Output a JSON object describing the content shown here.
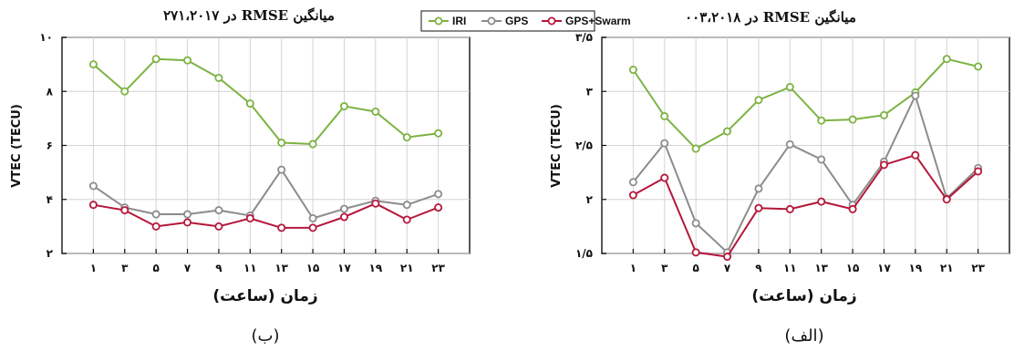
{
  "colors": {
    "IRI": "#7cb342",
    "GPS": "#8c8c8c",
    "GPS+Swarm": "#b5173a",
    "grid": "#d4d4d4"
  },
  "legend": {
    "placement": "top-center",
    "items": [
      "IRI",
      "GPS",
      "GPS+Swarm"
    ]
  },
  "chart_data": [
    {
      "panel": "(ب)",
      "type": "line",
      "title": "میانگین RMSE در ۲۷۱،۲۰۱۷",
      "xlabel": "زمان (ساعت)",
      "ylabel": "VTEC (TECU)",
      "x": [
        1,
        3,
        5,
        7,
        9,
        11,
        13,
        15,
        17,
        19,
        21,
        23
      ],
      "x_tick_labels": [
        "۱",
        "۳",
        "۵",
        "۷",
        "۹",
        "۱۱",
        "۱۳",
        "۱۵",
        "۱۷",
        "۱۹",
        "۲۱",
        "۲۳"
      ],
      "xlim": [
        -1,
        25
      ],
      "ylim": [
        2,
        10
      ],
      "y_ticks": [
        2,
        4,
        6,
        8,
        10
      ],
      "y_tick_labels": [
        "۲",
        "۴",
        "۶",
        "۸",
        "۱۰"
      ],
      "grid": true,
      "series": [
        {
          "name": "IRI",
          "values": [
            9.0,
            8.0,
            9.2,
            9.15,
            8.5,
            7.55,
            6.1,
            6.05,
            7.45,
            7.25,
            6.3,
            6.45
          ]
        },
        {
          "name": "GPS",
          "values": [
            4.5,
            3.7,
            3.45,
            3.45,
            3.6,
            3.4,
            5.1,
            3.3,
            3.65,
            3.95,
            3.8,
            4.2
          ]
        },
        {
          "name": "GPS+Swarm",
          "values": [
            3.8,
            3.6,
            3.0,
            3.15,
            3.0,
            3.3,
            2.95,
            2.95,
            3.35,
            3.85,
            3.25,
            3.7
          ]
        }
      ]
    },
    {
      "panel": "(الف)",
      "type": "line",
      "title": "میانگین RMSE در ۰۰۳،۲۰۱۸",
      "xlabel": "زمان (ساعت)",
      "ylabel": "VTEC (TECU)",
      "x": [
        1,
        3,
        5,
        7,
        9,
        11,
        13,
        15,
        17,
        19,
        21,
        23
      ],
      "x_tick_labels": [
        "۱",
        "۳",
        "۵",
        "۷",
        "۹",
        "۱۱",
        "۱۳",
        "۱۵",
        "۱۷",
        "۱۹",
        "۲۱",
        "۲۳"
      ],
      "xlim": [
        -1,
        25
      ],
      "ylim": [
        1.5,
        3.5
      ],
      "y_ticks": [
        1.5,
        2,
        2.5,
        3,
        3.5
      ],
      "y_tick_labels": [
        "۱/۵",
        "۲",
        "۲/۵",
        "۳",
        "۳/۵"
      ],
      "grid": true,
      "series": [
        {
          "name": "IRI",
          "values": [
            3.2,
            2.77,
            2.47,
            2.63,
            2.92,
            3.04,
            2.73,
            2.74,
            2.78,
            2.99,
            3.3,
            3.23
          ]
        },
        {
          "name": "GPS",
          "values": [
            2.16,
            2.52,
            1.78,
            1.51,
            2.1,
            2.51,
            2.37,
            1.95,
            2.35,
            2.96,
            2.01,
            2.29
          ]
        },
        {
          "name": "GPS+Swarm",
          "values": [
            2.04,
            2.2,
            1.51,
            1.47,
            1.92,
            1.91,
            1.98,
            1.91,
            2.32,
            2.41,
            2.0,
            2.26
          ]
        }
      ]
    }
  ],
  "panel_labels": [
    "(ب)",
    "(الف)"
  ]
}
